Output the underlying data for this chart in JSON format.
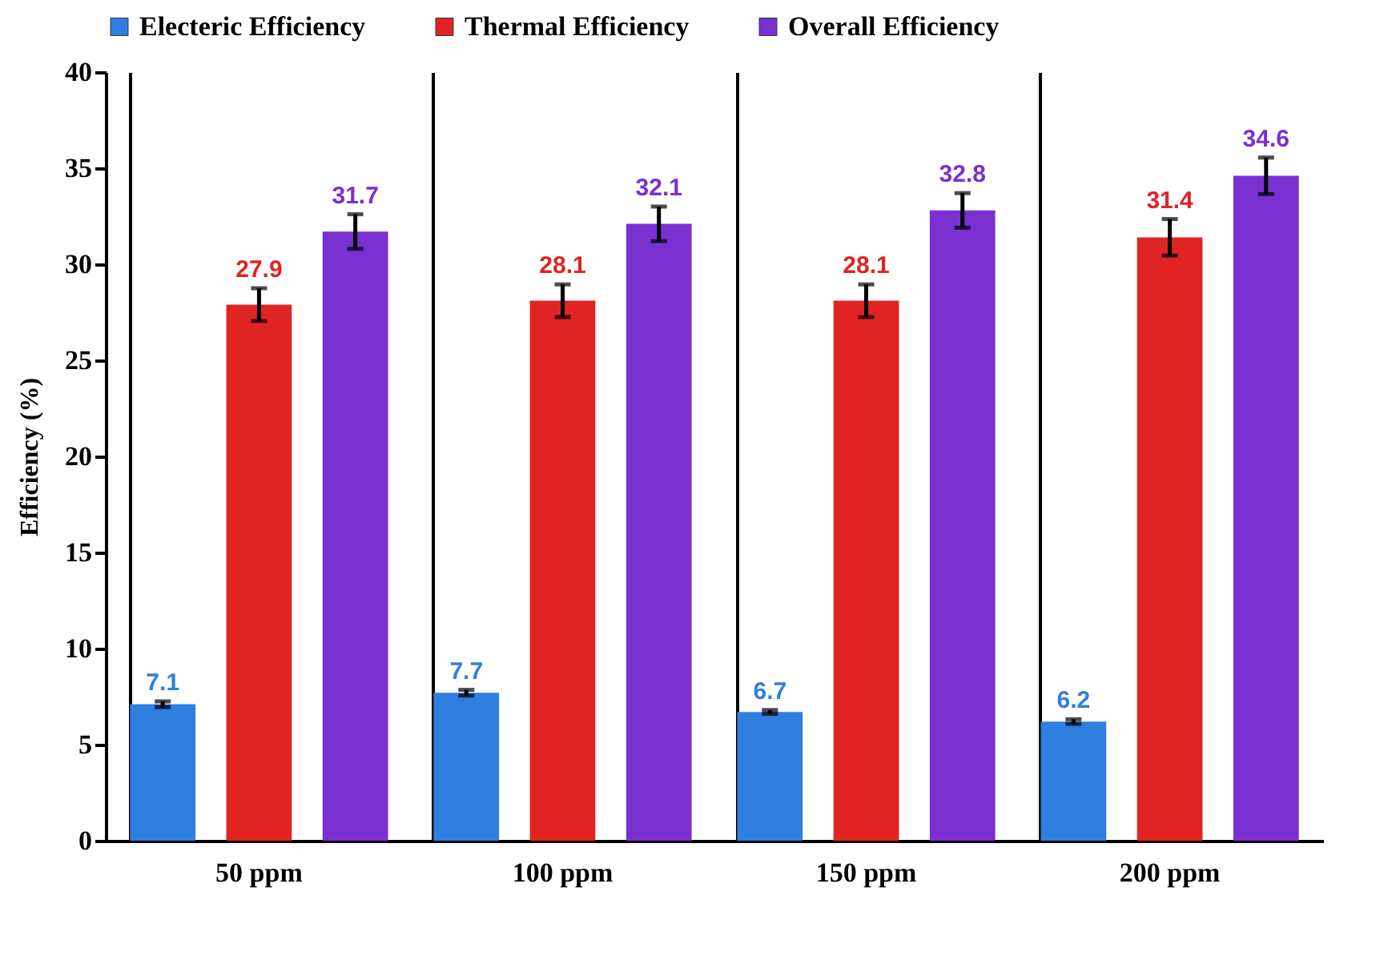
{
  "chart_data": {
    "type": "bar",
    "ylabel": "Efficiency (%)",
    "categories": [
      "50 ppm",
      "100 ppm",
      "150 ppm",
      "200 ppm"
    ],
    "series": [
      {
        "name": "Electeric Efficiency",
        "color": "#2f7fe0",
        "values": [
          7.1,
          7.7,
          6.7,
          6.2
        ],
        "errors": [
          0.15,
          0.15,
          0.1,
          0.12
        ]
      },
      {
        "name": "Thermal Efficiency",
        "color": "#e02424",
        "values": [
          27.9,
          28.1,
          28.1,
          31.4
        ],
        "errors": [
          0.85,
          0.85,
          0.85,
          0.95
        ]
      },
      {
        "name": "Overall Efficiency",
        "color": "#7a30d0",
        "values": [
          31.7,
          32.1,
          32.8,
          34.6
        ],
        "errors": [
          0.9,
          0.9,
          0.9,
          0.95
        ]
      }
    ],
    "ylim": [
      0,
      40
    ],
    "yticks": [
      0,
      5,
      10,
      15,
      20,
      25,
      30,
      35,
      40
    ],
    "grid": "x",
    "legend": "top",
    "data_labels": true
  }
}
